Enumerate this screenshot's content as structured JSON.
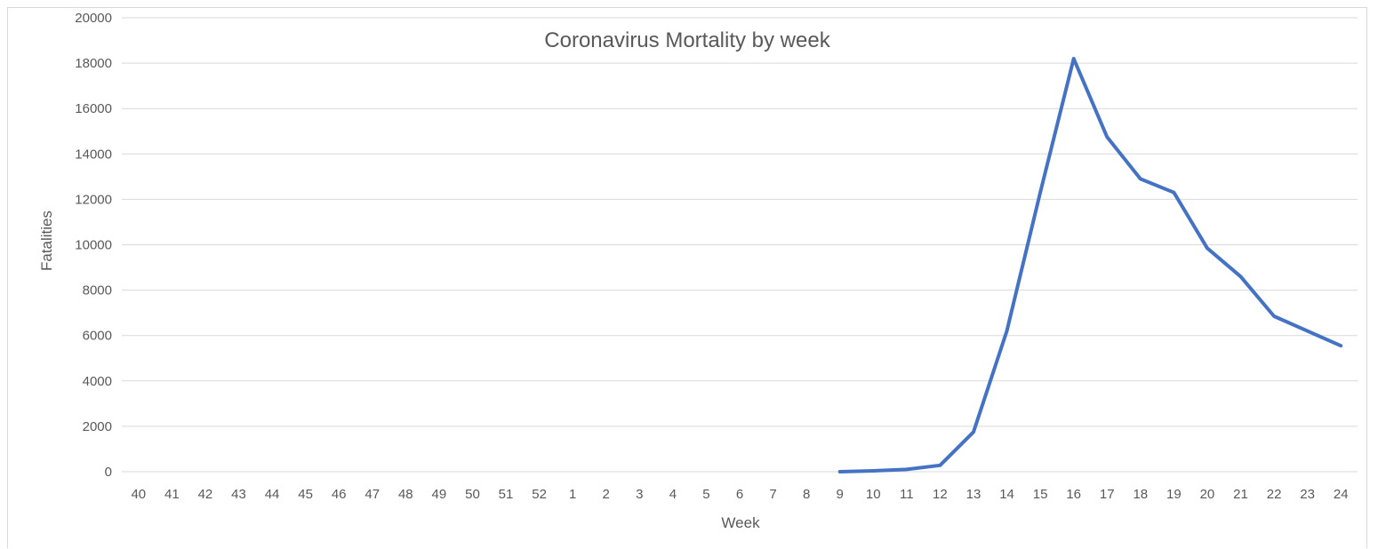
{
  "chart_data": {
    "type": "line",
    "title": "Coronavirus Mortality by week",
    "xlabel": "Week",
    "ylabel": "Fatalities",
    "ylim": [
      0,
      20000
    ],
    "yticks": [
      "0",
      "2000",
      "4000",
      "6000",
      "8000",
      "10000",
      "12000",
      "14000",
      "16000",
      "18000",
      "20000"
    ],
    "grid": true,
    "legend": "none",
    "categories": [
      "40",
      "41",
      "42",
      "43",
      "44",
      "45",
      "46",
      "47",
      "48",
      "49",
      "50",
      "51",
      "52",
      "1",
      "2",
      "3",
      "4",
      "5",
      "6",
      "7",
      "8",
      "9",
      "10",
      "11",
      "12",
      "13",
      "14",
      "15",
      "16",
      "17",
      "18",
      "19",
      "20",
      "21",
      "22",
      "23",
      "24"
    ],
    "series": [
      {
        "name": "Fatalities",
        "color": "#4472c4",
        "values": [
          null,
          null,
          null,
          null,
          null,
          null,
          null,
          null,
          null,
          null,
          null,
          null,
          null,
          null,
          null,
          null,
          null,
          null,
          null,
          null,
          null,
          0,
          40,
          100,
          280,
          1750,
          6200,
          12300,
          18200,
          14750,
          12900,
          12300,
          9850,
          8600,
          6850,
          6200,
          5550
        ]
      }
    ]
  }
}
